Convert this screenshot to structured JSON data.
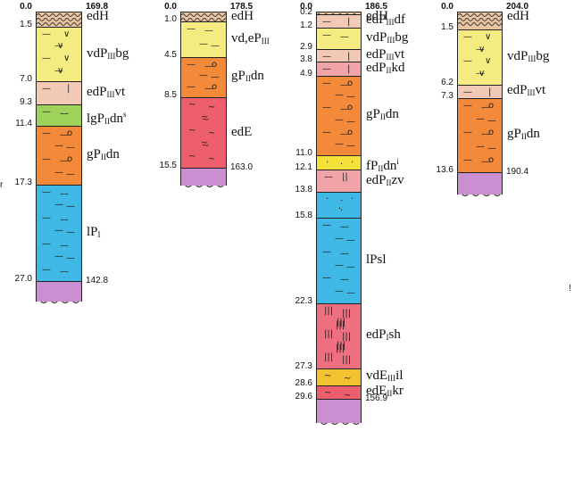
{
  "colors": {
    "edH": "#e8c4a0",
    "vd": "#f4ec80",
    "edPvt": "#f2c9b4",
    "lgP": "#9fd25a",
    "gP": "#f28a3a",
    "lP": "#3fb8e6",
    "edE": "#ee5f6e",
    "base": "#c98fd0",
    "fP": "#f4e23a",
    "edPzv": "#f0a4a8",
    "edPsh": "#ee6f80",
    "vdE": "#f2c230"
  },
  "columns": [
    {
      "name": "column-1",
      "top_elevation": "169.8",
      "bottom_elevation": "142.8",
      "total_depth": 27.0,
      "base_depth": 29.0,
      "layers": [
        {
          "code": "edH",
          "top": 0.0,
          "bottom": 1.5,
          "top_label": "0.0",
          "bottom_label": "1.5",
          "label_parts": [
            [
              "edH",
              ""
            ]
          ],
          "color": "edH",
          "pattern": "wave"
        },
        {
          "code": "vdPbg",
          "top": 1.5,
          "bottom": 7.0,
          "bottom_label": "7.0",
          "label_parts": [
            [
              "vdP",
              ""
            ],
            [
              "III",
              "sub"
            ],
            [
              "bg",
              ""
            ]
          ],
          "color": "vd",
          "pattern": "dash-v"
        },
        {
          "code": "edPvt",
          "top": 7.0,
          "bottom": 9.3,
          "bottom_label": "9.3",
          "label_parts": [
            [
              "edP",
              ""
            ],
            [
              "III",
              "sub"
            ],
            [
              "vt",
              ""
            ]
          ],
          "color": "edPvt",
          "pattern": "dash-bar"
        },
        {
          "code": "lgPdn",
          "top": 9.3,
          "bottom": 11.4,
          "bottom_label": "11.4",
          "label_parts": [
            [
              "lgP",
              ""
            ],
            [
              "II",
              "sub"
            ],
            [
              "dn",
              ""
            ],
            [
              "s",
              "sup"
            ]
          ],
          "color": "lgP",
          "pattern": "dash"
        },
        {
          "code": "gPdn",
          "top": 11.4,
          "bottom": 17.3,
          "bottom_label": "17.3",
          "label_parts": [
            [
              "gP",
              ""
            ],
            [
              "II",
              "sub"
            ],
            [
              "dn",
              ""
            ]
          ],
          "color": "gP",
          "pattern": "dash-o"
        },
        {
          "code": "lP",
          "top": 17.3,
          "bottom": 27.0,
          "bottom_label": "27.0",
          "label_parts": [
            [
              "lP",
              ""
            ],
            [
              "I",
              "sub"
            ]
          ],
          "color": "lP",
          "pattern": "dash"
        },
        {
          "code": "base",
          "top": 27.0,
          "bottom": 29.0,
          "label_parts": [],
          "color": "base",
          "pattern": "none"
        }
      ]
    },
    {
      "name": "column-2",
      "top_elevation": "178.5",
      "bottom_elevation": "163.0",
      "total_depth": 15.5,
      "base_depth": 17.3,
      "layers": [
        {
          "code": "edH",
          "top": 0.0,
          "bottom": 1.0,
          "top_label": "0.0",
          "bottom_label": "1.0",
          "label_parts": [
            [
              "edH",
              ""
            ]
          ],
          "color": "edH",
          "pattern": "wave"
        },
        {
          "code": "vd,eP",
          "top": 1.0,
          "bottom": 4.5,
          "bottom_label": "4.5",
          "label_parts": [
            [
              "vd,eP",
              ""
            ],
            [
              "III",
              "sub"
            ]
          ],
          "color": "vd",
          "pattern": "dash"
        },
        {
          "code": "gPdn",
          "top": 4.5,
          "bottom": 8.5,
          "bottom_label": "8.5",
          "label_parts": [
            [
              "gP",
              ""
            ],
            [
              "II",
              "sub"
            ],
            [
              "dn",
              ""
            ]
          ],
          "color": "gP",
          "pattern": "dash-o"
        },
        {
          "code": "edE",
          "top": 8.5,
          "bottom": 15.5,
          "bottom_label": "15.5",
          "label_parts": [
            [
              "edE",
              ""
            ]
          ],
          "color": "edE",
          "pattern": "tilde"
        },
        {
          "code": "base",
          "top": 15.5,
          "bottom": 17.3,
          "label_parts": [],
          "color": "base",
          "pattern": "none"
        }
      ]
    },
    {
      "name": "column-3",
      "top_elevation": "186.5",
      "bottom_elevation": "156.9",
      "total_depth": 29.6,
      "base_depth": 31.5,
      "layers": [
        {
          "code": "edH",
          "top": 0.0,
          "bottom": 0.2,
          "top_label": "0.0",
          "bottom_label": "0.2",
          "label_parts": [
            [
              "edH",
              ""
            ]
          ],
          "color": "edH",
          "pattern": "wave"
        },
        {
          "code": "edPdf",
          "top": 0.2,
          "bottom": 1.2,
          "bottom_label": "1.2",
          "label_parts": [
            [
              "edP",
              ""
            ],
            [
              "III",
              "sub"
            ],
            [
              "df",
              ""
            ]
          ],
          "color": "edPvt",
          "pattern": "dash-bar"
        },
        {
          "code": "vdPbg",
          "top": 1.2,
          "bottom": 2.9,
          "bottom_label": "2.9",
          "label_parts": [
            [
              "vdP",
              ""
            ],
            [
              "III",
              "sub"
            ],
            [
              "bg",
              ""
            ]
          ],
          "color": "vd",
          "pattern": "dash"
        },
        {
          "code": "edPvt",
          "top": 2.9,
          "bottom": 3.8,
          "bottom_label": "3.8",
          "label_parts": [
            [
              "edP",
              ""
            ],
            [
              "III",
              "sub"
            ],
            [
              "vt",
              ""
            ]
          ],
          "color": "edPvt",
          "pattern": "dash-bar"
        },
        {
          "code": "edPkd",
          "top": 3.8,
          "bottom": 4.9,
          "bottom_label": "4.9",
          "label_parts": [
            [
              "edP",
              ""
            ],
            [
              "II",
              "sub"
            ],
            [
              "kd",
              ""
            ]
          ],
          "color": "edPzv",
          "pattern": "dash-bar"
        },
        {
          "code": "gPdn",
          "top": 4.9,
          "bottom": 11.0,
          "bottom_label": "11.0",
          "label_parts": [
            [
              "gP",
              ""
            ],
            [
              "II",
              "sub"
            ],
            [
              "dn",
              ""
            ]
          ],
          "color": "gP",
          "pattern": "dash-o"
        },
        {
          "code": "fPdn",
          "top": 11.0,
          "bottom": 12.1,
          "bottom_label": "12.1",
          "label_parts": [
            [
              "fP",
              ""
            ],
            [
              "II",
              "sub"
            ],
            [
              "dn",
              ""
            ],
            [
              "i",
              "sup"
            ]
          ],
          "color": "fP",
          "pattern": "dots"
        },
        {
          "code": "edPzv",
          "top": 12.1,
          "bottom": 13.8,
          "bottom_label": "13.8",
          "label_parts": [
            [
              "edP",
              ""
            ],
            [
              "II",
              "sub"
            ],
            [
              "zv",
              ""
            ]
          ],
          "color": "edPzv",
          "pattern": "bars"
        },
        {
          "code": "lPsl-top",
          "top": 13.8,
          "bottom": 15.8,
          "bottom_label": "15.8",
          "label_parts": [],
          "color": "lP",
          "pattern": "dots"
        },
        {
          "code": "lPsl",
          "top": 15.8,
          "bottom": 22.3,
          "bottom_label": "22.3",
          "label_parts": [
            [
              "lPsl",
              ""
            ]
          ],
          "color": "lP",
          "pattern": "dash"
        },
        {
          "code": "edPsh",
          "top": 22.3,
          "bottom": 27.3,
          "bottom_label": "27.3",
          "label_parts": [
            [
              "edP",
              ""
            ],
            [
              "I",
              "sub"
            ],
            [
              "sh",
              ""
            ]
          ],
          "color": "edPsh",
          "pattern": "triple-bar"
        },
        {
          "code": "vdEil",
          "top": 27.3,
          "bottom": 28.6,
          "bottom_label": "28.6",
          "label_parts": [
            [
              "vdE",
              ""
            ],
            [
              "III",
              "sub"
            ],
            [
              "il",
              ""
            ]
          ],
          "color": "vdE",
          "pattern": "tilde"
        },
        {
          "code": "edEkr",
          "top": 28.6,
          "bottom": 29.6,
          "bottom_label": "29.6",
          "label_parts": [
            [
              "edE",
              ""
            ],
            [
              "II",
              "sub"
            ],
            [
              "kr",
              ""
            ]
          ],
          "color": "edE",
          "pattern": "tilde"
        },
        {
          "code": "base",
          "top": 29.6,
          "bottom": 31.5,
          "label_parts": [],
          "color": "base",
          "pattern": "none"
        }
      ]
    },
    {
      "name": "column-4",
      "top_elevation": "204.0",
      "bottom_elevation": "190.4",
      "total_depth": 13.6,
      "base_depth": 15.5,
      "layers": [
        {
          "code": "edH",
          "top": 0.0,
          "bottom": 1.5,
          "top_label": "0.0",
          "bottom_label": "1.5",
          "label_parts": [
            [
              "edH",
              ""
            ]
          ],
          "color": "edH",
          "pattern": "wave"
        },
        {
          "code": "vdPbg",
          "top": 1.5,
          "bottom": 6.2,
          "bottom_label": "6.2",
          "label_parts": [
            [
              "vdP",
              ""
            ],
            [
              "III",
              "sub"
            ],
            [
              "bg",
              ""
            ]
          ],
          "color": "vd",
          "pattern": "dash-v"
        },
        {
          "code": "edPvt",
          "top": 6.2,
          "bottom": 7.3,
          "bottom_label": "7.3",
          "label_parts": [
            [
              "edP",
              ""
            ],
            [
              "III",
              "sub"
            ],
            [
              "vt",
              ""
            ]
          ],
          "color": "edPvt",
          "pattern": "dash-bar"
        },
        {
          "code": "gPdn",
          "top": 7.3,
          "bottom": 13.6,
          "bottom_label": "13.6",
          "label_parts": [
            [
              "gP",
              ""
            ],
            [
              "II",
              "sub"
            ],
            [
              "dn",
              ""
            ]
          ],
          "color": "gP",
          "pattern": "dash-o"
        },
        {
          "code": "base",
          "top": 13.6,
          "bottom": 15.5,
          "label_parts": [],
          "color": "base",
          "pattern": "none"
        }
      ]
    }
  ],
  "side_marks": [
    "r",
    "!"
  ]
}
